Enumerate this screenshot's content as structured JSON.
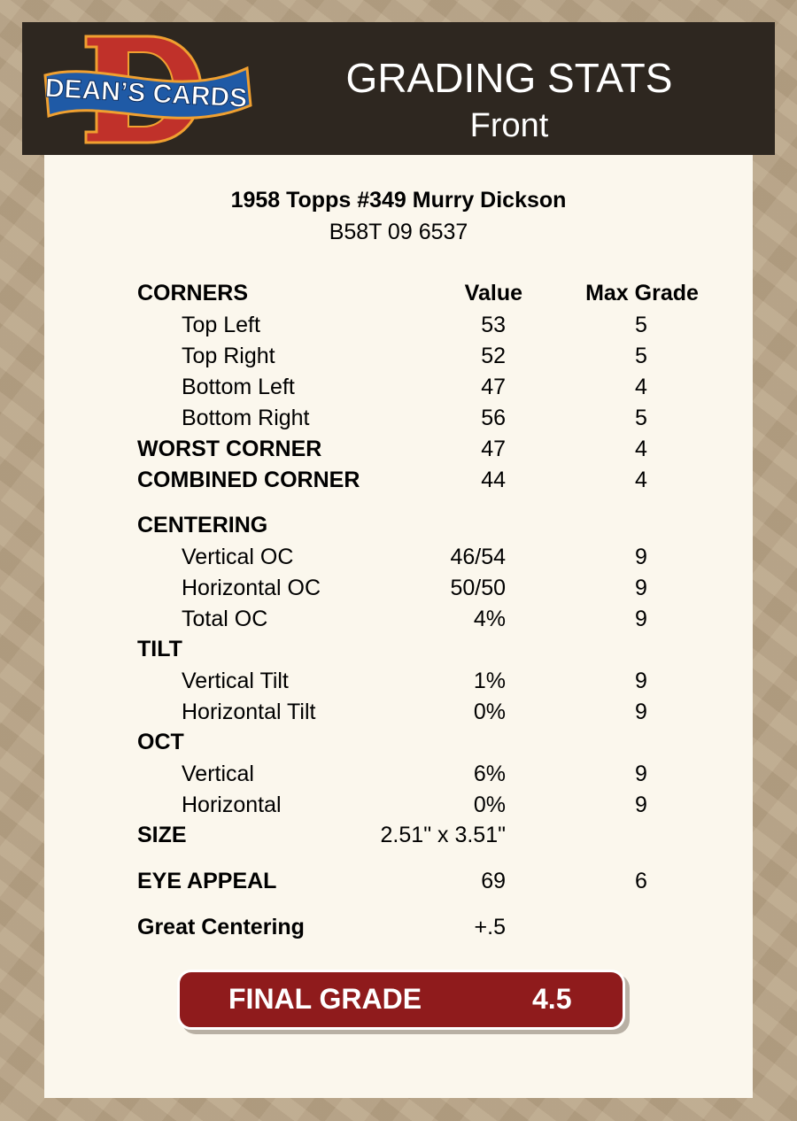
{
  "header": {
    "logo_text": "DEAN'S CARDS",
    "title": "GRADING STATS",
    "subtitle": "Front"
  },
  "card": {
    "title": "1958 Topps #349 Murry Dickson",
    "code": "B58T 09 6537"
  },
  "columns": {
    "value": "Value",
    "max_grade": "Max Grade"
  },
  "rows": [
    {
      "label": "CORNERS",
      "value": "",
      "max": "",
      "kind": "hdr"
    },
    {
      "label": "Top Left",
      "value": "53",
      "max": "5",
      "kind": "sub"
    },
    {
      "label": "Top Right",
      "value": "52",
      "max": "5",
      "kind": "sub"
    },
    {
      "label": "Bottom Left",
      "value": "47",
      "max": "4",
      "kind": "sub"
    },
    {
      "label": "Bottom Right",
      "value": "56",
      "max": "5",
      "kind": "sub"
    },
    {
      "label": "WORST CORNER",
      "value": "47",
      "max": "4",
      "kind": "bold"
    },
    {
      "label": "COMBINED CORNER",
      "value": "44",
      "max": "4",
      "kind": "bold"
    },
    {
      "label": "CENTERING",
      "value": "",
      "max": "",
      "kind": "bold"
    },
    {
      "label": "Vertical OC",
      "value": "46/54",
      "max": "9",
      "kind": "sub"
    },
    {
      "label": "Horizontal OC",
      "value": "50/50",
      "max": "9",
      "kind": "sub"
    },
    {
      "label": "Total OC",
      "value": "4%",
      "max": "9",
      "kind": "sub"
    },
    {
      "label": "TILT",
      "value": "",
      "max": "",
      "kind": "bold"
    },
    {
      "label": "Vertical Tilt",
      "value": "1%",
      "max": "9",
      "kind": "sub"
    },
    {
      "label": "Horizontal Tilt",
      "value": "0%",
      "max": "9",
      "kind": "sub"
    },
    {
      "label": "OCT",
      "value": "",
      "max": "",
      "kind": "bold"
    },
    {
      "label": "Vertical",
      "value": "6%",
      "max": "9",
      "kind": "sub"
    },
    {
      "label": "Horizontal",
      "value": "0%",
      "max": "9",
      "kind": "sub"
    },
    {
      "label": "SIZE",
      "value": "2.51\" x 3.51\"",
      "max": "",
      "kind": "bold"
    },
    {
      "label": "EYE APPEAL",
      "value": "69",
      "max": "6",
      "kind": "bold"
    },
    {
      "label": "Great Centering",
      "value": "+.5",
      "max": "",
      "kind": "bold"
    }
  ],
  "final": {
    "label": "FINAL GRADE",
    "value": "4.5"
  },
  "colors": {
    "header_bg": "#2e2720",
    "panel_bg": "#fbf7ed",
    "final_bg": "#8f1b1c"
  }
}
